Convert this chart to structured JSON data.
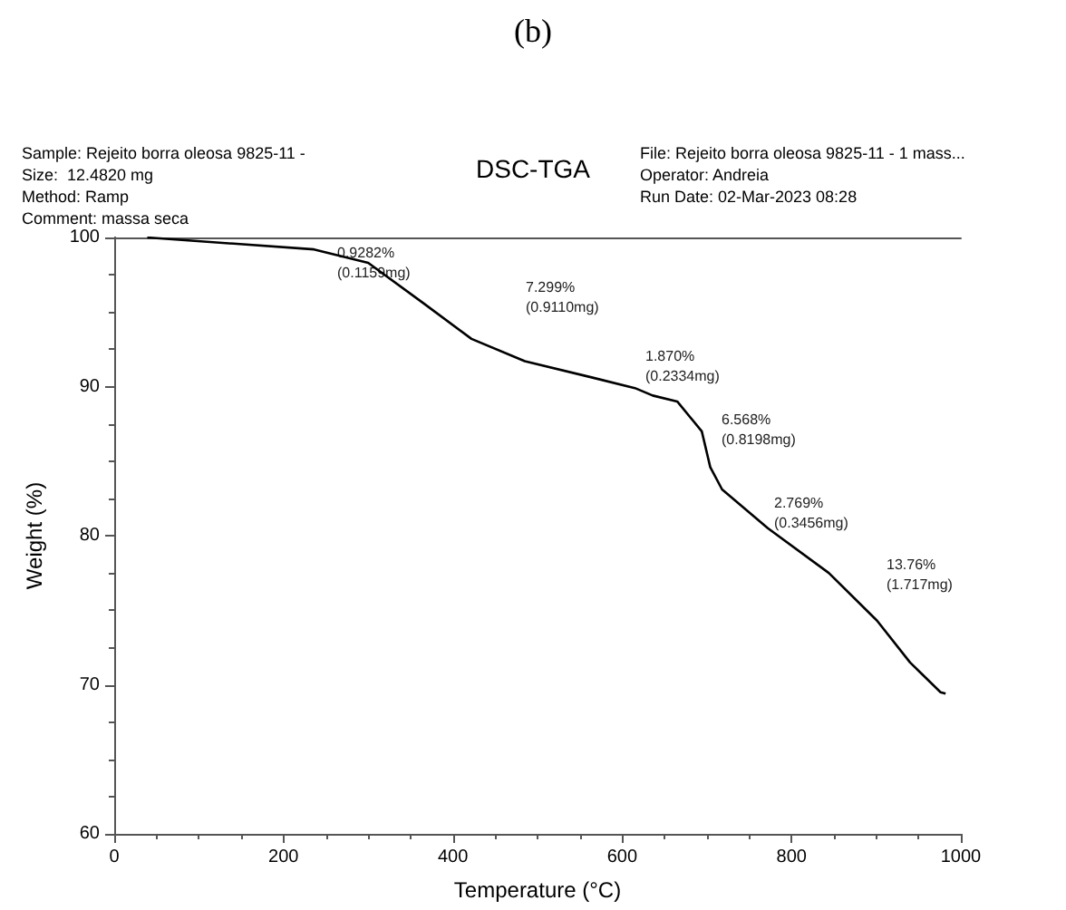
{
  "chart_data": {
    "type": "line",
    "title": "DSC-TGA",
    "xlabel": "Temperature (°C)",
    "ylabel": "Weight (%)",
    "annotations": [
      "(b)",
      "Sample: Rejeito borra oleosa 9825-11 -",
      "Size:  12.4820 mg",
      "Method: Ramp",
      "Comment: massa seca",
      "File: Rejeito borra oleosa 9825-11 - 1 mass...",
      "Operator: Andreia",
      "Run Date: 02-Mar-2023 08:28",
      "0.9282%\n(0.1159mg)",
      "7.299%\n(0.9110mg)",
      "1.870%\n(0.2334mg)",
      "6.568%\n(0.8198mg)",
      "2.769%\n(0.3456mg)",
      "13.76%\n(1.717mg)"
    ],
    "x": [
      39,
      236,
      300,
      365,
      422,
      485,
      565,
      615,
      636,
      665,
      694,
      704,
      718,
      772,
      844,
      901,
      940,
      976,
      982
    ],
    "series": [
      {
        "color": "#000000",
        "values": [
          100.0,
          99.2,
          98.3,
          95.6,
          93.2,
          91.7,
          90.6,
          89.9,
          89.4,
          89.0,
          87.0,
          84.6,
          83.1,
          80.5,
          77.5,
          74.3,
          71.5,
          69.5,
          69.4
        ]
      }
    ],
    "xlim": [
      0,
      1000
    ],
    "xticks": [
      0,
      200,
      400,
      600,
      800,
      1000
    ],
    "ylim": [
      60,
      100
    ],
    "yticks": [
      60,
      70,
      80,
      90,
      100
    ],
    "grid": false,
    "marker": "none",
    "line_style": "solid"
  }
}
